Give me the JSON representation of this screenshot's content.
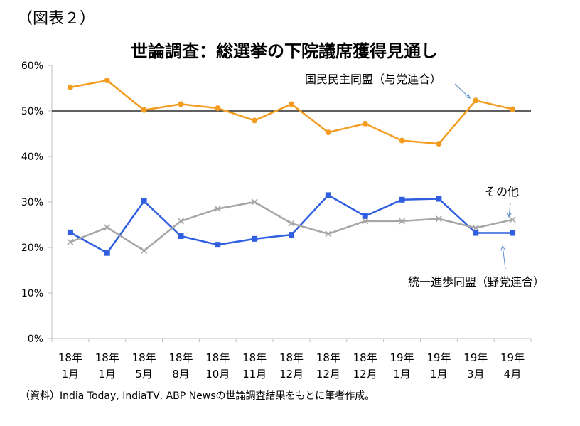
{
  "figure_label": "（図表２）",
  "source_note": "（資料）India Today, IndiaTV, ABP Newsの世論調査結果をもとに筆者作成。",
  "colors": {
    "series_1": "#f39c1f",
    "series_2": "#2f5fe0",
    "series_3": "#a6a6a6",
    "reference_line": "#000000",
    "annotation_arrow": "#5b8dc9"
  },
  "chart_data": {
    "type": "line",
    "title": "世論調査：総選挙の下院議席獲得見通し",
    "ylim": [
      0,
      60
    ],
    "y_ticks": [
      "0%",
      "10%",
      "20%",
      "30%",
      "40%",
      "50%",
      "60%"
    ],
    "reference_line_value": 50,
    "grid": false,
    "categories": [
      {
        "year": "18年",
        "month": "1月"
      },
      {
        "year": "18年",
        "month": "1月"
      },
      {
        "year": "18年",
        "month": "5月"
      },
      {
        "year": "18年",
        "month": "8月"
      },
      {
        "year": "18年",
        "month": "10月"
      },
      {
        "year": "18年",
        "month": "11月"
      },
      {
        "year": "18年",
        "month": "12月"
      },
      {
        "year": "18年",
        "month": "12月"
      },
      {
        "year": "18年",
        "month": "12月"
      },
      {
        "year": "19年",
        "month": "1月"
      },
      {
        "year": "19年",
        "month": "1月"
      },
      {
        "year": "19年",
        "month": "3月"
      },
      {
        "year": "19年",
        "month": "4月"
      }
    ],
    "series": [
      {
        "name": "国民民主同盟（与党連合）",
        "marker": "circle",
        "color_key": "series_1",
        "values": [
          55.2,
          56.7,
          50.2,
          51.5,
          50.6,
          47.9,
          51.5,
          45.3,
          47.2,
          43.5,
          42.8,
          52.3,
          50.4
        ]
      },
      {
        "name": "統一進歩同盟（野党連合）",
        "marker": "square",
        "color_key": "series_2",
        "values": [
          23.3,
          18.8,
          30.2,
          22.5,
          20.6,
          21.9,
          22.8,
          31.5,
          26.9,
          30.5,
          30.7,
          23.2,
          23.2
        ]
      },
      {
        "name": "その他",
        "marker": "x",
        "color_key": "series_3",
        "values": [
          21.2,
          24.4,
          19.3,
          25.8,
          28.5,
          30.0,
          25.3,
          23.0,
          25.8,
          25.8,
          26.3,
          24.3,
          26.1
        ]
      }
    ]
  }
}
